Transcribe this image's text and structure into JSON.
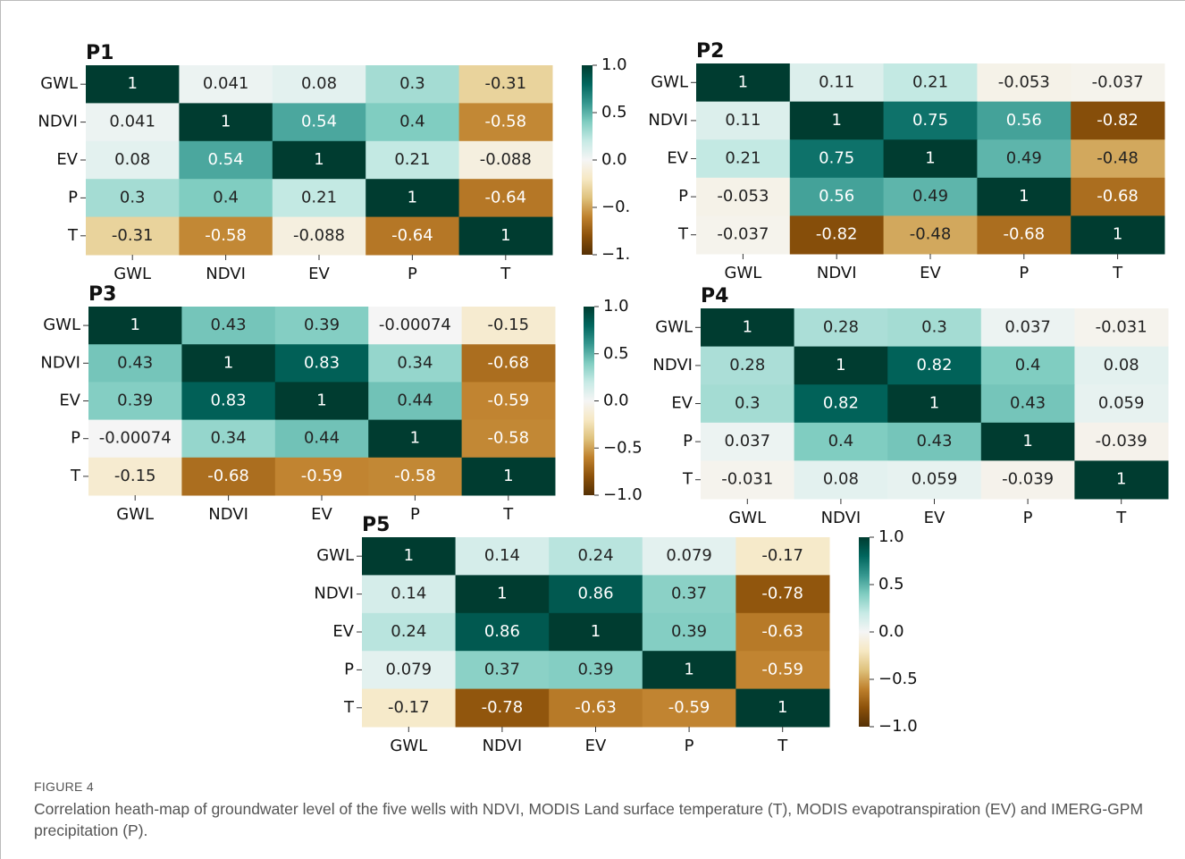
{
  "chart_data": [
    {
      "type": "heatmap",
      "title": "P1",
      "cmap": "BrBG",
      "zlim": [
        -1,
        1
      ],
      "x": [
        "GWL",
        "NDVI",
        "EV",
        "P",
        "T"
      ],
      "y": [
        "GWL",
        "NDVI",
        "EV",
        "P",
        "T"
      ],
      "values": [
        [
          1,
          0.041,
          0.08,
          0.3,
          -0.31
        ],
        [
          0.041,
          1,
          0.54,
          0.4,
          -0.58
        ],
        [
          0.08,
          0.54,
          1,
          0.21,
          -0.088
        ],
        [
          0.3,
          0.4,
          0.21,
          1,
          -0.64
        ],
        [
          -0.31,
          -0.58,
          -0.088,
          -0.64,
          1
        ]
      ],
      "colorbar_ticks": [
        {
          "value": 1,
          "label": "1.0"
        },
        {
          "value": 0.5,
          "label": "0.5"
        },
        {
          "value": 0,
          "label": "0.0"
        },
        {
          "value": -0.5,
          "label": "−0."
        },
        {
          "value": -1,
          "label": "−1."
        }
      ]
    },
    {
      "type": "heatmap",
      "title": "P2",
      "cmap": "BrBG",
      "zlim": [
        -1,
        1
      ],
      "x": [
        "GWL",
        "NDVI",
        "EV",
        "P",
        "T"
      ],
      "y": [
        "GWL",
        "NDVI",
        "EV",
        "P",
        "T"
      ],
      "values": [
        [
          1,
          0.11,
          0.21,
          -0.053,
          -0.037
        ],
        [
          0.11,
          1,
          0.75,
          0.56,
          -0.82
        ],
        [
          0.21,
          0.75,
          1,
          0.49,
          -0.48
        ],
        [
          -0.053,
          0.56,
          0.49,
          1,
          -0.68
        ],
        [
          -0.037,
          -0.82,
          -0.48,
          -0.68,
          1
        ]
      ]
    },
    {
      "type": "heatmap",
      "title": "P3",
      "cmap": "BrBG",
      "zlim": [
        -1,
        1
      ],
      "x": [
        "GWL",
        "NDVI",
        "EV",
        "P",
        "T"
      ],
      "y": [
        "GWL",
        "NDVI",
        "EV",
        "P",
        "T"
      ],
      "values": [
        [
          1,
          0.43,
          0.39,
          -0.00074,
          -0.15
        ],
        [
          0.43,
          1,
          0.83,
          0.34,
          -0.68
        ],
        [
          0.39,
          0.83,
          1,
          0.44,
          -0.59
        ],
        [
          -0.00074,
          0.34,
          0.44,
          1,
          -0.58
        ],
        [
          -0.15,
          -0.68,
          -0.59,
          -0.58,
          1
        ]
      ],
      "colorbar_ticks": [
        {
          "value": 1,
          "label": "1.0"
        },
        {
          "value": 0.5,
          "label": "0.5"
        },
        {
          "value": 0,
          "label": "0.0"
        },
        {
          "value": -0.5,
          "label": "−0.5"
        },
        {
          "value": -1,
          "label": "−1.0"
        }
      ]
    },
    {
      "type": "heatmap",
      "title": "P4",
      "cmap": "BrBG",
      "zlim": [
        -1,
        1
      ],
      "x": [
        "GWL",
        "NDVI",
        "EV",
        "P",
        "T"
      ],
      "y": [
        "GWL",
        "NDVI",
        "EV",
        "P",
        "T"
      ],
      "values": [
        [
          1,
          0.28,
          0.3,
          0.037,
          -0.031
        ],
        [
          0.28,
          1,
          0.82,
          0.4,
          0.08
        ],
        [
          0.3,
          0.82,
          1,
          0.43,
          0.059
        ],
        [
          0.037,
          0.4,
          0.43,
          1,
          -0.039
        ],
        [
          -0.031,
          0.08,
          0.059,
          -0.039,
          1
        ]
      ]
    },
    {
      "type": "heatmap",
      "title": "P5",
      "cmap": "BrBG",
      "zlim": [
        -1,
        1
      ],
      "x": [
        "GWL",
        "NDVI",
        "EV",
        "P",
        "T"
      ],
      "y": [
        "GWL",
        "NDVI",
        "EV",
        "P",
        "T"
      ],
      "values": [
        [
          1,
          0.14,
          0.24,
          0.079,
          -0.17
        ],
        [
          0.14,
          1,
          0.86,
          0.37,
          -0.78
        ],
        [
          0.24,
          0.86,
          1,
          0.39,
          -0.63
        ],
        [
          0.079,
          0.37,
          0.39,
          1,
          -0.59
        ],
        [
          -0.17,
          -0.78,
          -0.63,
          -0.59,
          1
        ]
      ],
      "colorbar_ticks": [
        {
          "value": 1,
          "label": "1.0"
        },
        {
          "value": 0.5,
          "label": "0.5"
        },
        {
          "value": 0,
          "label": "0.0"
        },
        {
          "value": -0.5,
          "label": "−0.5"
        },
        {
          "value": -1,
          "label": "−1.0"
        }
      ]
    }
  ],
  "figure": {
    "label": "FIGURE 4",
    "caption": "Correlation heath-map of groundwater level of the five wells with NDVI, MODIS Land surface temperature (T), MODIS evapotranspiration (EV) and IMERG-GPM precipitation (P)."
  }
}
